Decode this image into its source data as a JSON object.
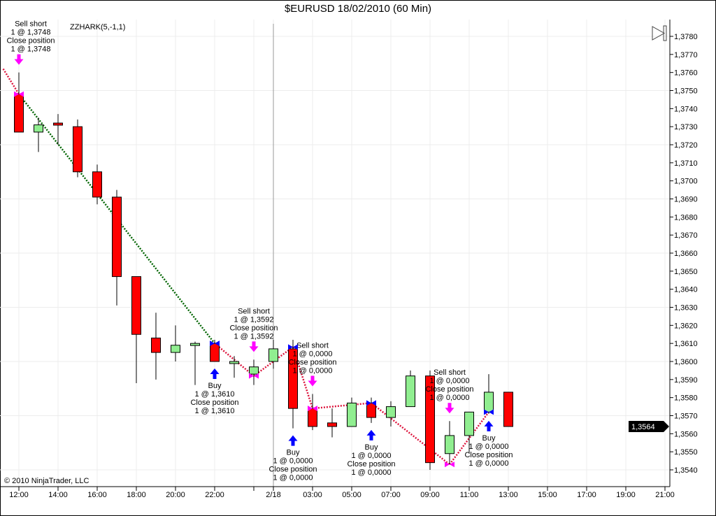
{
  "window": {
    "title": "$EURUSD  18/02/2010 (60 Min)"
  },
  "indicator_label": "ZZHARK(5,-1,1)",
  "copyright": "© 2010 NinjaTrader, LLC",
  "last_price_tag": "1,3564",
  "colors": {
    "up": "#90ee90",
    "down": "#ff0000",
    "sell_arrow": "#ff00ff",
    "buy_arrow": "#0000ff",
    "zigzag_down": "#006400",
    "zigzag_other": "#dc143c"
  },
  "chart_data": {
    "type": "candlestick",
    "title": "$EURUSD  18/02/2010 (60 Min)",
    "ylim": [
      1.3535,
      1.379
    ],
    "y_ticks": [
      "1,3780",
      "1,3770",
      "1,3760",
      "1,3750",
      "1,3740",
      "1,3730",
      "1,3720",
      "1,3710",
      "1,3700",
      "1,3690",
      "1,3680",
      "1,3670",
      "1,3660",
      "1,3650",
      "1,3640",
      "1,3630",
      "1,3620",
      "1,3610",
      "1,3600",
      "1,3590",
      "1,3580",
      "1,3570",
      "1,3560",
      "1,3550",
      "1,3540"
    ],
    "x_ticks": [
      {
        "slot": 0,
        "label": "12:00"
      },
      {
        "slot": 2,
        "label": "14:00"
      },
      {
        "slot": 4,
        "label": "16:00"
      },
      {
        "slot": 6,
        "label": "18:00"
      },
      {
        "slot": 8,
        "label": "20:00"
      },
      {
        "slot": 10,
        "label": "22:00"
      },
      {
        "slot": 12,
        "label": ""
      },
      {
        "slot": 13,
        "label": "2/18"
      },
      {
        "slot": 15,
        "label": "03:00"
      },
      {
        "slot": 17,
        "label": "05:00"
      },
      {
        "slot": 19,
        "label": "07:00"
      },
      {
        "slot": 21,
        "label": "09:00"
      },
      {
        "slot": 23,
        "label": "11:00"
      },
      {
        "slot": 25,
        "label": "13:00"
      },
      {
        "slot": 27,
        "label": "15:00"
      },
      {
        "slot": 29,
        "label": "17:00"
      },
      {
        "slot": 31,
        "label": "19:00"
      },
      {
        "slot": 33,
        "label": "21:00"
      }
    ],
    "session_break_slot": 13,
    "candles": [
      {
        "o": 1.3748,
        "h": 1.376,
        "l": 1.3727,
        "c": 1.3727
      },
      {
        "o": 1.3727,
        "h": 1.3735,
        "l": 1.3716,
        "c": 1.3731
      },
      {
        "o": 1.3732,
        "h": 1.3737,
        "l": 1.372,
        "c": 1.3731
      },
      {
        "o": 1.373,
        "h": 1.3734,
        "l": 1.3702,
        "c": 1.3705
      },
      {
        "o": 1.3705,
        "h": 1.3709,
        "l": 1.3687,
        "c": 1.3691
      },
      {
        "o": 1.3691,
        "h": 1.3695,
        "l": 1.3631,
        "c": 1.3647
      },
      {
        "o": 1.3647,
        "h": 1.3647,
        "l": 1.3588,
        "c": 1.3615
      },
      {
        "o": 1.3613,
        "h": 1.3627,
        "l": 1.359,
        "c": 1.3605
      },
      {
        "o": 1.3605,
        "h": 1.362,
        "l": 1.36,
        "c": 1.3609
      },
      {
        "o": 1.3609,
        "h": 1.3611,
        "l": 1.3587,
        "c": 1.361
      },
      {
        "o": 1.361,
        "h": 1.3612,
        "l": 1.36,
        "c": 1.36
      },
      {
        "o": 1.3599,
        "h": 1.3603,
        "l": 1.3591,
        "c": 1.36
      },
      {
        "o": 1.3593,
        "h": 1.3601,
        "l": 1.3587,
        "c": 1.3597
      },
      {
        "o": 1.36,
        "h": 1.3612,
        "l": 1.3596,
        "c": 1.3607
      },
      {
        "o": 1.3607,
        "h": 1.3612,
        "l": 1.3563,
        "c": 1.3574
      },
      {
        "o": 1.3574,
        "h": 1.3582,
        "l": 1.3562,
        "c": 1.3564
      },
      {
        "o": 1.3566,
        "h": 1.3574,
        "l": 1.3558,
        "c": 1.3564
      },
      {
        "o": 1.3564,
        "h": 1.358,
        "l": 1.3564,
        "c": 1.3577
      },
      {
        "o": 1.3577,
        "h": 1.358,
        "l": 1.3566,
        "c": 1.3569
      },
      {
        "o": 1.3569,
        "h": 1.3578,
        "l": 1.3564,
        "c": 1.3575
      },
      {
        "o": 1.3575,
        "h": 1.3595,
        "l": 1.3575,
        "c": 1.3592
      },
      {
        "o": 1.3592,
        "h": 1.3595,
        "l": 1.354,
        "c": 1.3544
      },
      {
        "o": 1.3549,
        "h": 1.3567,
        "l": 1.3543,
        "c": 1.3559
      },
      {
        "o": 1.3559,
        "h": 1.3572,
        "l": 1.3549,
        "c": 1.3572
      },
      {
        "o": 1.3572,
        "h": 1.3593,
        "l": 1.3571,
        "c": 1.3583
      },
      {
        "o": 1.3583,
        "h": 1.3583,
        "l": 1.3564,
        "c": 1.3564
      }
    ],
    "zigzag": [
      {
        "slot": -0.8,
        "price": 1.3762,
        "style": "other"
      },
      {
        "slot": 0,
        "price": 1.3748,
        "style": "down"
      },
      {
        "slot": 10,
        "price": 1.361,
        "style": "other"
      },
      {
        "slot": 12,
        "price": 1.3592,
        "style": "other"
      },
      {
        "slot": 14,
        "price": 1.3608,
        "style": "other"
      },
      {
        "slot": 15,
        "price": 1.3574,
        "style": "other"
      },
      {
        "slot": 18,
        "price": 1.3577,
        "style": "other"
      },
      {
        "slot": 22,
        "price": 1.3543,
        "style": "other"
      },
      {
        "slot": 24,
        "price": 1.3572,
        "style": "other"
      }
    ],
    "trades": [
      {
        "slot": 0,
        "side": "sell",
        "lines": [
          "Sell short",
          "1 @ 1,3748",
          "Close position",
          "1 @ 1,3748"
        ]
      },
      {
        "slot": 10,
        "side": "buy",
        "lines": [
          "Buy",
          "1 @ 1,3610",
          "Close position",
          "1 @ 1,3610"
        ]
      },
      {
        "slot": 12,
        "side": "sell",
        "lines": [
          "Sell short",
          "1 @ 1,3592",
          "Close position",
          "1 @ 1,3592"
        ]
      },
      {
        "slot": 14,
        "side": "buy",
        "lines": [
          "Buy",
          "1 @ 0,0000",
          "Close position",
          "1 @ 0,0000"
        ]
      },
      {
        "slot": 15,
        "side": "sell",
        "lines": [
          "Sell short",
          "1 @ 0,0000",
          "Close position",
          "1 @ 0,0000"
        ]
      },
      {
        "slot": 18,
        "side": "buy",
        "lines": [
          "Buy",
          "1 @ 0,0000",
          "Close position",
          "1 @ 0,0000"
        ]
      },
      {
        "slot": 22,
        "side": "sell",
        "lines": [
          "Sell short",
          "1 @ 0,0000",
          "Close position",
          "1 @ 0,0000"
        ]
      },
      {
        "slot": 24,
        "side": "buy",
        "lines": [
          "Buy",
          "1 @ 0,0000",
          "Close position",
          "1 @ 0,0000"
        ]
      }
    ],
    "last_price": 1.3564
  }
}
